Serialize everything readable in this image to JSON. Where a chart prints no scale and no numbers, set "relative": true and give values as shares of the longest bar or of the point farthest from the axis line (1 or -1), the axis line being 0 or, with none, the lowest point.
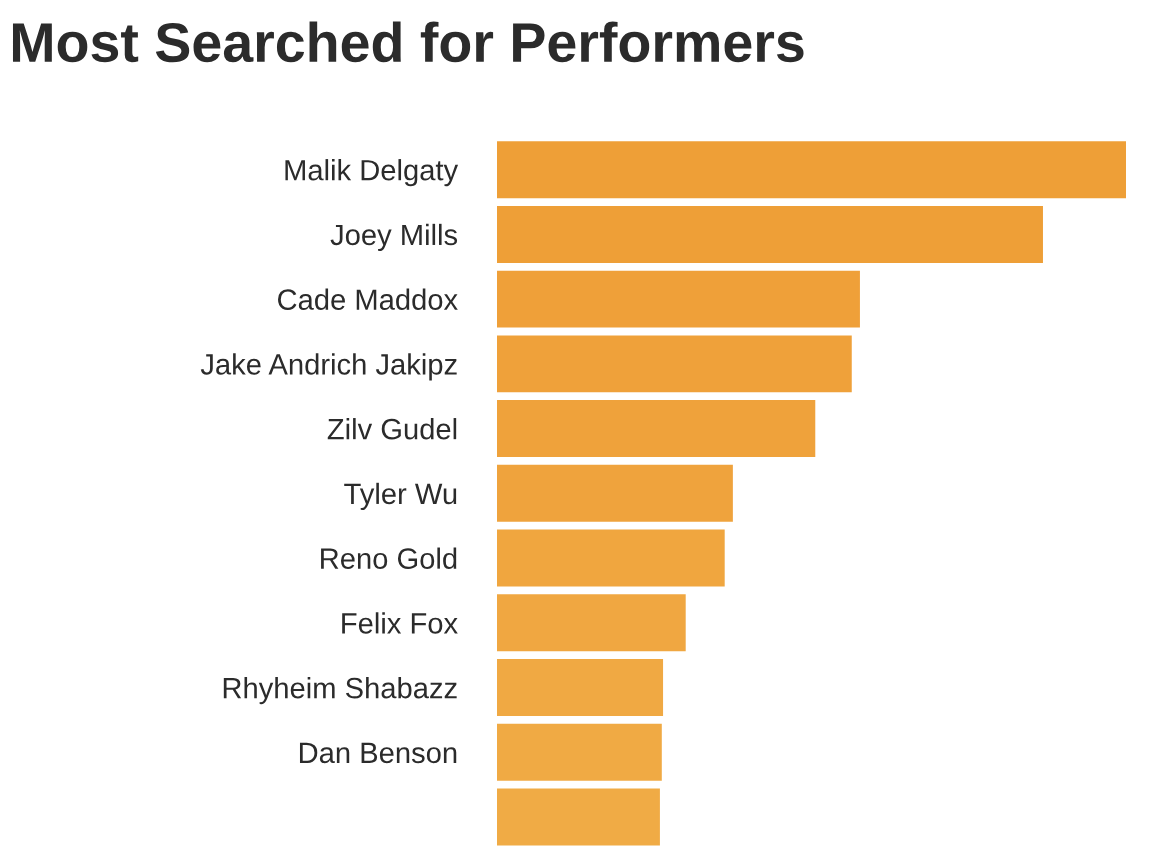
{
  "chart_data": {
    "type": "bar",
    "orientation": "horizontal",
    "relative": true,
    "title": "Most Searched for Performers",
    "categories": [
      "Malik Delgaty",
      "Joey Mills",
      "Cade Maddox",
      "Jake Andrich Jakipz",
      "Zilv Gudel",
      "Tyler Wu",
      "Reno Gold",
      "Felix Fox",
      "Rhyheim Shabazz",
      "Dan Benson",
      null
    ],
    "values": [
      1,
      0.868,
      0.577,
      0.564,
      0.506,
      0.375,
      0.362,
      0.3,
      0.264,
      0.262,
      0.259
    ],
    "colors": [
      "#ee9f37",
      "#ee9f37",
      "#efa039",
      "#efa13a",
      "#efa23b",
      "#efa33d",
      "#f0a63f",
      "#f0a741",
      "#f0a943",
      "#f0aa44",
      "#f0ab45"
    ],
    "grid": false,
    "legend": false
  }
}
